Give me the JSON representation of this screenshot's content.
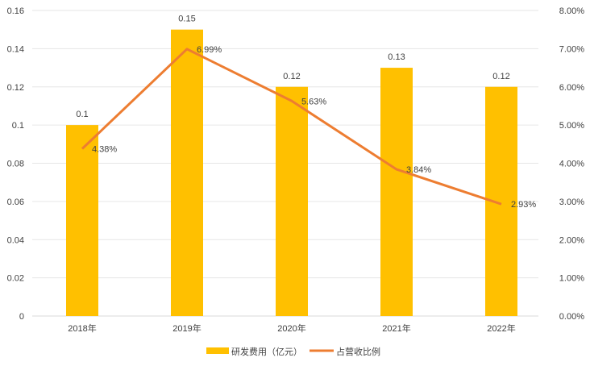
{
  "chart_data": {
    "type": "bar+line",
    "categories": [
      "2018年",
      "2019年",
      "2020年",
      "2021年",
      "2022年"
    ],
    "series": [
      {
        "name": "研发费用（亿元）",
        "type": "bar",
        "axis": "left",
        "color": "#FFC000",
        "values": [
          0.1,
          0.15,
          0.12,
          0.13,
          0.12
        ],
        "labels": [
          "0.1",
          "0.15",
          "0.12",
          "0.13",
          "0.12"
        ]
      },
      {
        "name": "占营收比例",
        "type": "line",
        "axis": "right",
        "color": "#ED7D31",
        "values": [
          4.38,
          6.99,
          5.63,
          3.84,
          2.93
        ],
        "labels": [
          "4.38%",
          "6.99%",
          "5.63%",
          "3.84%",
          "2.93%"
        ]
      }
    ],
    "yleft": {
      "lim": [
        0,
        0.16
      ],
      "ticks": [
        "0",
        "0.02",
        "0.04",
        "0.06",
        "0.08",
        "0.1",
        "0.12",
        "0.14",
        "0.16"
      ]
    },
    "yright": {
      "lim": [
        0,
        8
      ],
      "ticks": [
        "0.00%",
        "1.00%",
        "2.00%",
        "3.00%",
        "4.00%",
        "5.00%",
        "6.00%",
        "7.00%",
        "8.00%"
      ]
    },
    "grid": true,
    "legend": "bottom"
  }
}
